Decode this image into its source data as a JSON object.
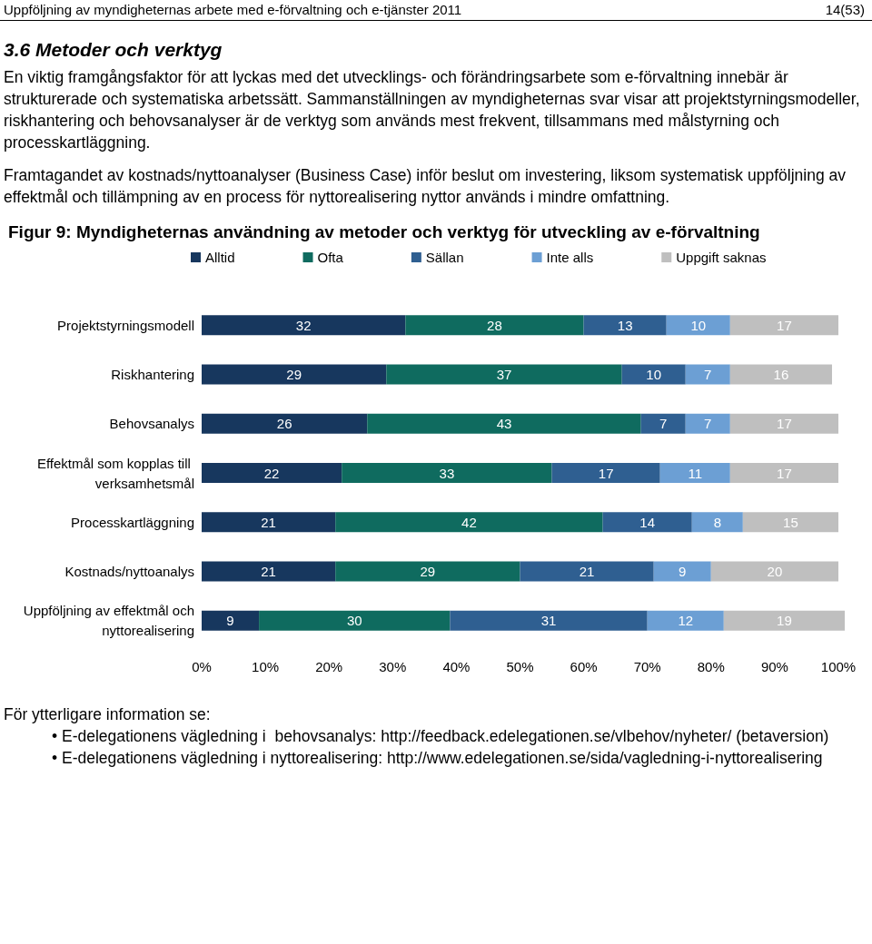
{
  "chart_data": {
    "type": "bar",
    "orientation": "horizontal",
    "stacked": true,
    "title": "Figur 9: Myndigheternas användning av metoder och verktyg för utveckling av e-förvaltning",
    "annotations": [
      "Uppföljning av myndigheternas arbete med e-förvaltning och e-tjänster 2011",
      "14(53)",
      "3.6   Metoder och verktyg",
      "En viktig framgångsfaktor för att lyckas med det utvecklings- och förändringsarbete som e-förvaltning innebär är strukturerade och systematiska arbetssätt. Sammanställningen av myndigheternas svar visar att projektstyrningsmodeller, riskhantering och behovsanalyser är de verktyg som används mest frekvent, tillsammans med målstyrning och processkartläggning.",
      "Framtagandet av kostnads/nyttoanalyser (Business Case) inför beslut om investering, liksom systematisk uppföljning av effektmål och tillämpning av en process för nyttorealisering nyttor används i mindre omfattning.",
      "För ytterligare information se:",
      "• E-delegationens vägledning i  behovsanalys: http://feedback.edelegationen.se/vlbehov/nyheter/ (betaversion)",
      "• E-delegationens vägledning i nyttorealisering: http://www.edelegationen.se/sida/vagledning-i-nyttorealisering"
    ],
    "categories": [
      "Projektstyrningsmodell",
      "Riskhantering",
      "Behovsanalys",
      "Effektmål som kopplas till verksamhetsmål",
      "Processkartläggning",
      "Kostnads/nyttoanalys",
      "Uppföljning av effektmål och nyttorealisering"
    ],
    "series": [
      {
        "name": "Alltid",
        "color": "#17375e",
        "values": [
          32,
          29,
          26,
          22,
          21,
          21,
          9
        ]
      },
      {
        "name": "Ofta",
        "color": "#0f6b5f",
        "values": [
          28,
          37,
          43,
          33,
          42,
          29,
          30
        ]
      },
      {
        "name": "Sällan",
        "color": "#2f5f91",
        "values": [
          13,
          10,
          7,
          17,
          14,
          21,
          31
        ]
      },
      {
        "name": "Inte alls",
        "color": "#6c9fd4",
        "values": [
          10,
          7,
          7,
          11,
          8,
          9,
          12
        ]
      },
      {
        "name": "Uppgift saknas",
        "color": "#bfbfbf",
        "values": [
          17,
          16,
          17,
          17,
          15,
          20,
          19
        ]
      }
    ],
    "xlim": [
      0,
      101
    ],
    "xticks": [
      {
        "value": 0,
        "label": "0%"
      },
      {
        "value": 10,
        "label": "10%"
      },
      {
        "value": 20,
        "label": "20%"
      },
      {
        "value": 30,
        "label": "30%"
      },
      {
        "value": 40,
        "label": "40%"
      },
      {
        "value": 50,
        "label": "50%"
      },
      {
        "value": 60,
        "label": "60%"
      },
      {
        "value": 70,
        "label": "70%"
      },
      {
        "value": 80,
        "label": "80%"
      },
      {
        "value": 90,
        "label": "90%"
      },
      {
        "value": 100,
        "label": "100%"
      }
    ],
    "legend": "top",
    "grid": false,
    "data_labels": true
  }
}
